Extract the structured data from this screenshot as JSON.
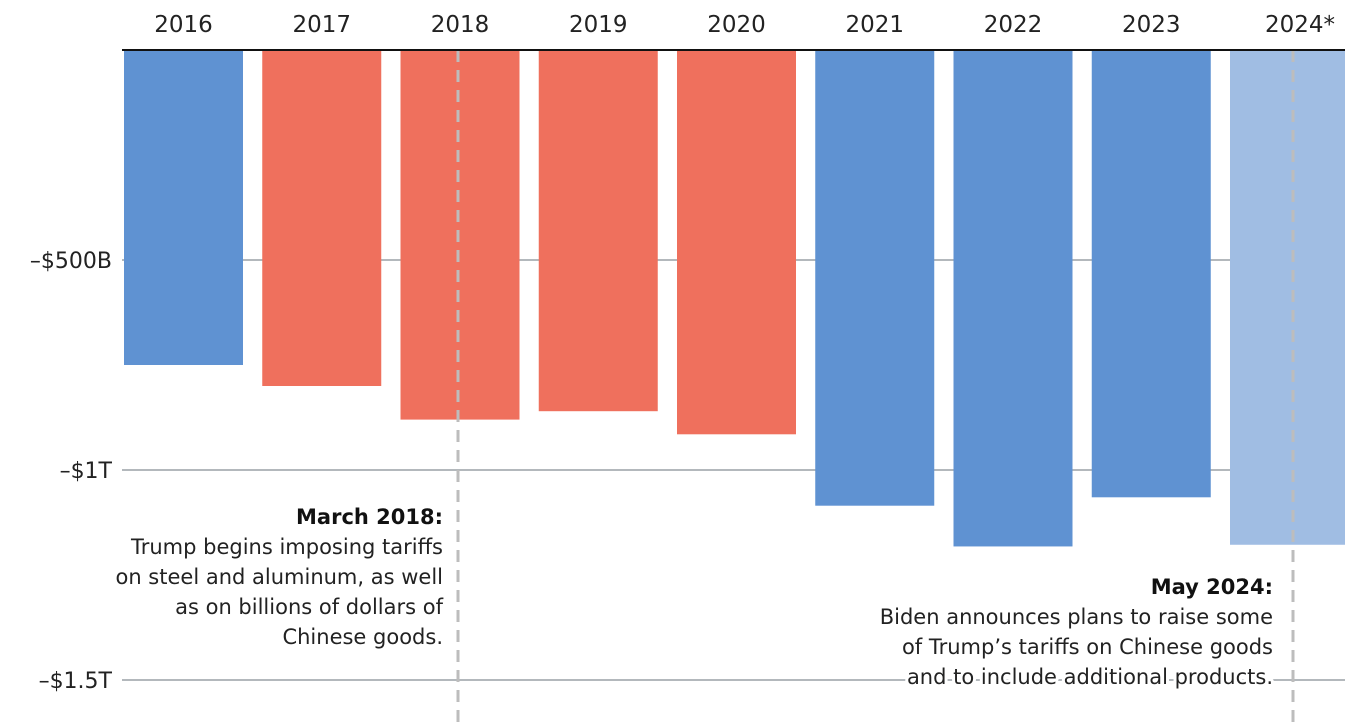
{
  "chart_data": {
    "type": "bar",
    "categories": [
      "2016",
      "2017",
      "2018",
      "2019",
      "2020",
      "2021",
      "2022",
      "2023",
      "2024*"
    ],
    "values": [
      -750,
      -800,
      -880,
      -860,
      -915,
      -1085,
      -1182,
      -1065,
      -1178
    ],
    "ylim": [
      -1500,
      0
    ],
    "ytick_values": [
      -500,
      -1000,
      -1500
    ],
    "ytick_labels": [
      "–$500B",
      "–$1T",
      "–$1.5T"
    ],
    "xaxis_position": "top",
    "grid": true,
    "bar_colors": [
      "#5f92d2",
      "#ef705d",
      "#ef705d",
      "#ef705d",
      "#ef705d",
      "#5f92d2",
      "#5f92d2",
      "#5f92d2",
      "#a0bde3"
    ],
    "annotations": [
      {
        "category": "2018",
        "title": "March 2018:",
        "lines": [
          "Trump begins imposing tariffs",
          "on steel and aluminum, as well",
          "as on billions of dollars of",
          "Chinese goods."
        ],
        "align": "left-of-line"
      },
      {
        "category": "2024*",
        "title": "May 2024:",
        "lines": [
          "Biden announces plans to raise some",
          "of Trump’s tariffs on Chinese goods",
          "and to include additional products."
        ],
        "align": "left-of-line"
      }
    ]
  },
  "colors": {
    "gridline": "#9aa0a6",
    "axis": "#111111",
    "annotation_line": "#bdbdbd"
  }
}
